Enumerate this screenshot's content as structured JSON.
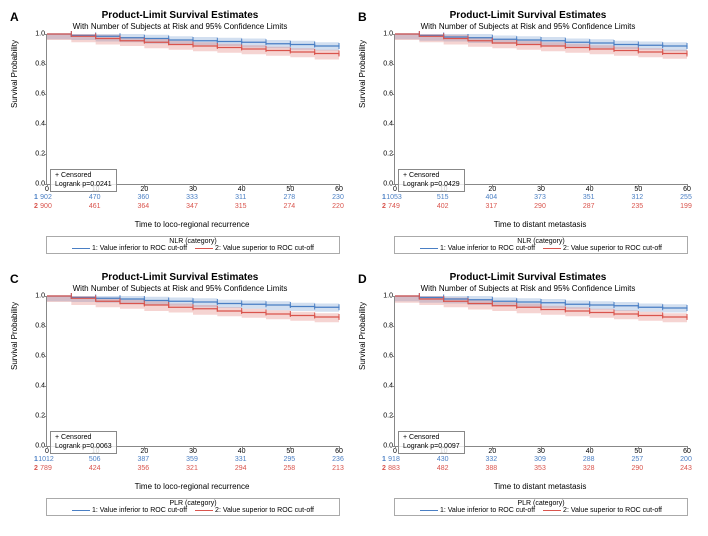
{
  "global": {
    "title": "Product-Limit Survival Estimates",
    "subtitle": "With Number of Subjects at Risk and 95% Confidence Limits",
    "ylabel": "Survival Probability",
    "censored_label": "+ Censored",
    "series1_label": "1: Value inferior to ROC cut-off",
    "series2_label": "2: Value superior to ROC cut-off",
    "color1": "#4a7fc4",
    "color2": "#d9544d",
    "xticks": [
      0,
      10,
      20,
      30,
      40,
      50,
      60
    ],
    "yticks": [
      0.0,
      0.2,
      0.4,
      0.6,
      0.8,
      1.0
    ],
    "ylim": [
      0,
      1
    ],
    "xlim": [
      0,
      60
    ]
  },
  "panels": [
    {
      "label": "A",
      "xlabel": "Time to loco-regional recurrence",
      "legend_title": "NLR (category)",
      "logrank": "Logrank p=0.0241",
      "risk1": [
        902,
        470,
        360,
        333,
        311,
        278,
        230
      ],
      "risk2": [
        900,
        461,
        364,
        347,
        315,
        274,
        220
      ],
      "s1": [
        [
          0,
          1.0
        ],
        [
          5,
          0.99
        ],
        [
          10,
          0.985
        ],
        [
          15,
          0.975
        ],
        [
          20,
          0.97
        ],
        [
          25,
          0.96
        ],
        [
          30,
          0.955
        ],
        [
          35,
          0.95
        ],
        [
          40,
          0.945
        ],
        [
          45,
          0.935
        ],
        [
          50,
          0.93
        ],
        [
          55,
          0.92
        ],
        [
          60,
          0.915
        ]
      ],
      "s2": [
        [
          0,
          1.0
        ],
        [
          5,
          0.985
        ],
        [
          10,
          0.97
        ],
        [
          15,
          0.955
        ],
        [
          20,
          0.945
        ],
        [
          25,
          0.93
        ],
        [
          30,
          0.92
        ],
        [
          35,
          0.91
        ],
        [
          40,
          0.9
        ],
        [
          45,
          0.89
        ],
        [
          50,
          0.88
        ],
        [
          55,
          0.87
        ],
        [
          60,
          0.855
        ]
      ],
      "ci_half": 0.025
    },
    {
      "label": "B",
      "xlabel": "Time to distant metastasis",
      "legend_title": "NLR (category)",
      "logrank": "Logrank p=0.0429",
      "risk1": [
        1053,
        515,
        404,
        373,
        351,
        312,
        255
      ],
      "risk2": [
        749,
        402,
        317,
        290,
        287,
        235,
        199
      ],
      "s1": [
        [
          0,
          1.0
        ],
        [
          5,
          0.99
        ],
        [
          10,
          0.98
        ],
        [
          15,
          0.975
        ],
        [
          20,
          0.965
        ],
        [
          25,
          0.96
        ],
        [
          30,
          0.955
        ],
        [
          35,
          0.945
        ],
        [
          40,
          0.94
        ],
        [
          45,
          0.93
        ],
        [
          50,
          0.925
        ],
        [
          55,
          0.92
        ],
        [
          60,
          0.91
        ]
      ],
      "s2": [
        [
          0,
          1.0
        ],
        [
          5,
          0.985
        ],
        [
          10,
          0.97
        ],
        [
          15,
          0.955
        ],
        [
          20,
          0.94
        ],
        [
          25,
          0.93
        ],
        [
          30,
          0.92
        ],
        [
          35,
          0.91
        ],
        [
          40,
          0.9
        ],
        [
          45,
          0.89
        ],
        [
          50,
          0.88
        ],
        [
          55,
          0.87
        ],
        [
          60,
          0.86
        ]
      ],
      "ci_half": 0.025
    },
    {
      "label": "C",
      "xlabel": "Time to loco-regional recurrence",
      "legend_title": "PLR (category)",
      "logrank": "Logrank p=0.0063",
      "risk1": [
        1012,
        506,
        387,
        359,
        331,
        295,
        236
      ],
      "risk2": [
        789,
        424,
        356,
        321,
        294,
        258,
        213
      ],
      "s1": [
        [
          0,
          1.0
        ],
        [
          5,
          0.99
        ],
        [
          10,
          0.985
        ],
        [
          15,
          0.98
        ],
        [
          20,
          0.97
        ],
        [
          25,
          0.965
        ],
        [
          30,
          0.96
        ],
        [
          35,
          0.95
        ],
        [
          40,
          0.945
        ],
        [
          45,
          0.94
        ],
        [
          50,
          0.93
        ],
        [
          55,
          0.925
        ],
        [
          60,
          0.92
        ]
      ],
      "s2": [
        [
          0,
          1.0
        ],
        [
          5,
          0.985
        ],
        [
          10,
          0.965
        ],
        [
          15,
          0.95
        ],
        [
          20,
          0.94
        ],
        [
          25,
          0.925
        ],
        [
          30,
          0.915
        ],
        [
          35,
          0.9
        ],
        [
          40,
          0.89
        ],
        [
          45,
          0.88
        ],
        [
          50,
          0.87
        ],
        [
          55,
          0.86
        ],
        [
          60,
          0.85
        ]
      ],
      "ci_half": 0.025
    },
    {
      "label": "D",
      "xlabel": "Time to distant metastasis",
      "legend_title": "PLR (category)",
      "logrank": "Logrank p=0.0097",
      "risk1": [
        918,
        430,
        332,
        309,
        288,
        257,
        200
      ],
      "risk2": [
        883,
        482,
        388,
        353,
        328,
        290,
        243
      ],
      "s1": [
        [
          0,
          1.0
        ],
        [
          5,
          0.99
        ],
        [
          10,
          0.98
        ],
        [
          15,
          0.975
        ],
        [
          20,
          0.965
        ],
        [
          25,
          0.96
        ],
        [
          30,
          0.955
        ],
        [
          35,
          0.945
        ],
        [
          40,
          0.94
        ],
        [
          45,
          0.935
        ],
        [
          50,
          0.925
        ],
        [
          55,
          0.92
        ],
        [
          60,
          0.915
        ]
      ],
      "s2": [
        [
          0,
          1.0
        ],
        [
          5,
          0.98
        ],
        [
          10,
          0.965
        ],
        [
          15,
          0.95
        ],
        [
          20,
          0.935
        ],
        [
          25,
          0.925
        ],
        [
          30,
          0.91
        ],
        [
          35,
          0.9
        ],
        [
          40,
          0.89
        ],
        [
          45,
          0.88
        ],
        [
          50,
          0.87
        ],
        [
          55,
          0.86
        ],
        [
          60,
          0.85
        ]
      ],
      "ci_half": 0.025
    }
  ]
}
